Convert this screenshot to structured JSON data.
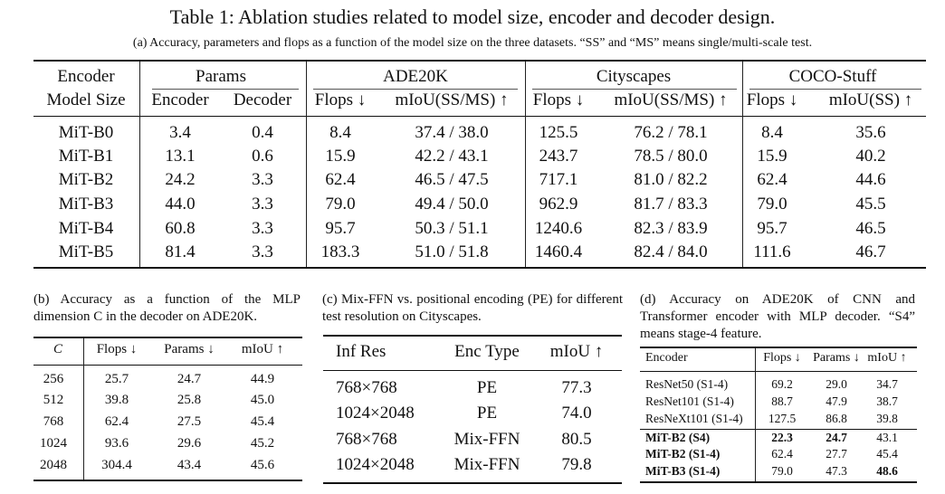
{
  "title": "Table 1: Ablation studies related to model size, encoder and decoder design.",
  "subtitle": "(a) Accuracy, parameters and flops as a function of the model size on the three datasets. “SS” and “MS” means single/multi-scale test.",
  "table_a": {
    "group_headers": [
      "Encoder",
      "Params",
      "ADE20K",
      "Cityscapes",
      "COCO-Stuff"
    ],
    "sub_headers": [
      "Model Size",
      "Encoder",
      "Decoder",
      "Flops ↓",
      "mIoU(SS/MS) ↑",
      "Flops ↓",
      "mIoU(SS/MS) ↑",
      "Flops ↓",
      "mIoU(SS) ↑"
    ],
    "rows": [
      [
        "MiT-B0",
        "3.4",
        "0.4",
        "8.4",
        "37.4 / 38.0",
        "125.5",
        "76.2 / 78.1",
        "8.4",
        "35.6"
      ],
      [
        "MiT-B1",
        "13.1",
        "0.6",
        "15.9",
        "42.2 / 43.1",
        "243.7",
        "78.5 / 80.0",
        "15.9",
        "40.2"
      ],
      [
        "MiT-B2",
        "24.2",
        "3.3",
        "62.4",
        "46.5 / 47.5",
        "717.1",
        "81.0 / 82.2",
        "62.4",
        "44.6"
      ],
      [
        "MiT-B3",
        "44.0",
        "3.3",
        "79.0",
        "49.4 / 50.0",
        "962.9",
        "81.7 / 83.3",
        "79.0",
        "45.5"
      ],
      [
        "MiT-B4",
        "60.8",
        "3.3",
        "95.7",
        "50.3 / 51.1",
        "1240.6",
        "82.3 / 83.9",
        "95.7",
        "46.5"
      ],
      [
        "MiT-B5",
        "81.4",
        "3.3",
        "183.3",
        "51.0 / 51.8",
        "1460.4",
        "82.4 / 84.0",
        "111.6",
        "46.7"
      ]
    ]
  },
  "table_b": {
    "caption": "(b) Accuracy as a function of the MLP dimension C in the decoder on ADE20K.",
    "headers": [
      "C",
      "Flops ↓",
      "Params ↓",
      "mIoU ↑"
    ],
    "rows": [
      [
        "256",
        "25.7",
        "24.7",
        "44.9"
      ],
      [
        "512",
        "39.8",
        "25.8",
        "45.0"
      ],
      [
        "768",
        "62.4",
        "27.5",
        "45.4"
      ],
      [
        "1024",
        "93.6",
        "29.6",
        "45.2"
      ],
      [
        "2048",
        "304.4",
        "43.4",
        "45.6"
      ]
    ]
  },
  "table_c": {
    "caption": "(c) Mix-FFN vs. positional encoding (PE) for different test resolution on Cityscapes.",
    "headers": [
      "Inf Res",
      "Enc Type",
      "mIoU ↑"
    ],
    "rows": [
      [
        "768×768",
        "PE",
        "77.3"
      ],
      [
        "1024×2048",
        "PE",
        "74.0"
      ],
      [
        "768×768",
        "Mix-FFN",
        "80.5"
      ],
      [
        "1024×2048",
        "Mix-FFN",
        "79.8"
      ]
    ]
  },
  "table_d": {
    "caption": "(d) Accuracy on ADE20K of CNN and Transformer encoder with MLP decoder. “S4” means stage-4 feature.",
    "headers": [
      "Encoder",
      "Flops ↓",
      "Params ↓",
      "mIoU ↑"
    ],
    "rows": [
      [
        "ResNet50 (S1-4)",
        "69.2",
        "29.0",
        "34.7"
      ],
      [
        "ResNet101 (S1-4)",
        "88.7",
        "47.9",
        "38.7"
      ],
      [
        "ResNeXt101 (S1-4)",
        "127.5",
        "86.8",
        "39.8"
      ],
      [
        "MiT-B2 (S4)",
        "22.3",
        "24.7",
        "43.1"
      ],
      [
        "MiT-B2 (S1-4)",
        "62.4",
        "27.7",
        "45.4"
      ],
      [
        "MiT-B3 (S1-4)",
        "79.0",
        "47.3",
        "48.6"
      ]
    ]
  }
}
